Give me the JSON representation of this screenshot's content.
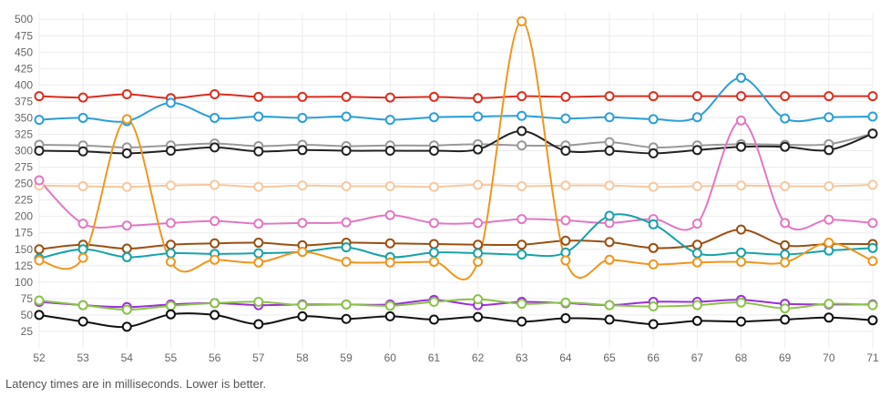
{
  "caption": "Latency times are in milliseconds. Lower is better.",
  "chart_data": {
    "type": "line",
    "title": "",
    "xlabel": "",
    "ylabel": "",
    "x": [
      52,
      53,
      54,
      55,
      56,
      57,
      58,
      59,
      60,
      61,
      62,
      63,
      64,
      65,
      66,
      67,
      68,
      69,
      70,
      71
    ],
    "ylim": [
      0,
      510
    ],
    "yticks": [
      25,
      50,
      75,
      100,
      125,
      150,
      175,
      200,
      225,
      250,
      275,
      300,
      325,
      350,
      375,
      400,
      425,
      450,
      475,
      500
    ],
    "grid": true,
    "legend": "none",
    "series": [
      {
        "color": "#dc2d1e",
        "values": [
          383,
          381,
          386,
          380,
          386,
          382,
          382,
          382,
          381,
          382,
          380,
          383,
          382,
          383,
          383,
          383,
          383,
          383,
          383,
          383
        ]
      },
      {
        "color": "#2b9fd8",
        "values": [
          347,
          350,
          345,
          373,
          350,
          352,
          350,
          352,
          347,
          351,
          352,
          353,
          349,
          351,
          348,
          351,
          411,
          349,
          351,
          352
        ]
      },
      {
        "color": "#999999",
        "values": [
          309,
          308,
          305,
          308,
          311,
          307,
          309,
          307,
          308,
          308,
          310,
          308,
          308,
          313,
          305,
          308,
          310,
          309,
          310,
          326
        ]
      },
      {
        "color": "#222222",
        "values": [
          300,
          299,
          296,
          300,
          305,
          299,
          301,
          300,
          300,
          300,
          302,
          330,
          300,
          300,
          296,
          301,
          306,
          306,
          301,
          326
        ]
      },
      {
        "color": "#f7c8a0",
        "values": [
          247,
          246,
          245,
          247,
          248,
          245,
          247,
          246,
          246,
          245,
          248,
          246,
          247,
          247,
          245,
          246,
          247,
          246,
          246,
          248
        ]
      },
      {
        "color": "#e377c2",
        "values": [
          255,
          189,
          186,
          190,
          193,
          189,
          190,
          191,
          202,
          190,
          190,
          196,
          194,
          190,
          196,
          189,
          346,
          190,
          195,
          190
        ]
      },
      {
        "color": "#9a4f12",
        "values": [
          150,
          157,
          151,
          157,
          159,
          160,
          156,
          160,
          159,
          158,
          157,
          157,
          163,
          161,
          152,
          157,
          180,
          156,
          158,
          158
        ]
      },
      {
        "color": "#17a2a8",
        "values": [
          136,
          150,
          138,
          144,
          143,
          144,
          146,
          153,
          138,
          145,
          144,
          142,
          145,
          201,
          188,
          144,
          145,
          142,
          148,
          152
        ]
      },
      {
        "color": "#f0961e",
        "values": [
          133,
          137,
          348,
          131,
          134,
          130,
          146,
          131,
          130,
          131,
          131,
          497,
          133,
          134,
          127,
          130,
          131,
          130,
          160,
          132
        ]
      },
      {
        "color": "#9b30d9",
        "values": [
          70,
          65,
          62,
          66,
          68,
          65,
          66,
          66,
          66,
          73,
          65,
          70,
          68,
          65,
          70,
          70,
          73,
          67,
          66,
          66
        ]
      },
      {
        "color": "#8bc34a",
        "values": [
          72,
          65,
          58,
          64,
          68,
          70,
          65,
          66,
          64,
          70,
          74,
          67,
          69,
          65,
          63,
          65,
          69,
          60,
          67,
          65
        ]
      },
      {
        "color": "#111111",
        "values": [
          50,
          40,
          32,
          51,
          50,
          36,
          48,
          44,
          48,
          43,
          47,
          40,
          45,
          43,
          36,
          41,
          40,
          43,
          46,
          42
        ]
      }
    ]
  }
}
